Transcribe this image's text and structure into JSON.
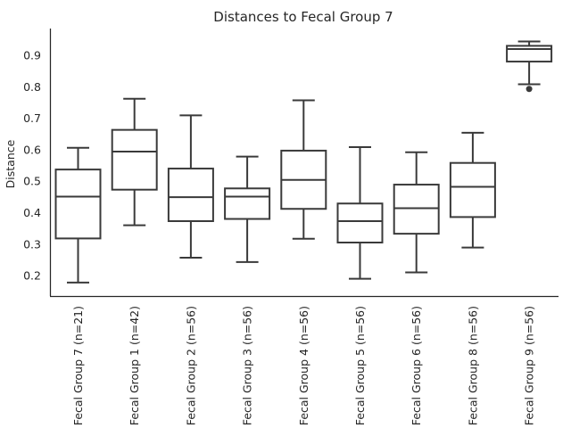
{
  "chart_data": {
    "type": "box",
    "title": "Distances to Fecal Group 7",
    "xlabel": "",
    "ylabel": "Distance",
    "ylim": [
      0.135,
      0.985
    ],
    "yticks": [
      0.2,
      0.3,
      0.4,
      0.5,
      0.6,
      0.7,
      0.8,
      0.9
    ],
    "ytick_labels": [
      "0.2",
      "0.3",
      "0.4",
      "0.5",
      "0.6",
      "0.7",
      "0.8",
      "0.9"
    ],
    "grid": false,
    "categories": [
      "Fecal Group 7 (n=21)",
      "Fecal Group 1 (n=42)",
      "Fecal Group 2 (n=56)",
      "Fecal Group 3 (n=56)",
      "Fecal Group 4 (n=56)",
      "Fecal Group 5 (n=56)",
      "Fecal Group 6 (n=56)",
      "Fecal Group 8 (n=56)",
      "Fecal Group 9 (n=56)"
    ],
    "boxes": [
      {
        "whislo": 0.178,
        "q1": 0.318,
        "med": 0.451,
        "q3": 0.537,
        "whishi": 0.606,
        "fliers": []
      },
      {
        "whislo": 0.36,
        "q1": 0.473,
        "med": 0.594,
        "q3": 0.663,
        "whishi": 0.762,
        "fliers": []
      },
      {
        "whislo": 0.257,
        "q1": 0.373,
        "med": 0.449,
        "q3": 0.54,
        "whishi": 0.709,
        "fliers": []
      },
      {
        "whislo": 0.243,
        "q1": 0.38,
        "med": 0.451,
        "q3": 0.477,
        "whishi": 0.578,
        "fliers": []
      },
      {
        "whislo": 0.317,
        "q1": 0.412,
        "med": 0.504,
        "q3": 0.597,
        "whishi": 0.757,
        "fliers": []
      },
      {
        "whislo": 0.19,
        "q1": 0.305,
        "med": 0.373,
        "q3": 0.429,
        "whishi": 0.608,
        "fliers": []
      },
      {
        "whislo": 0.21,
        "q1": 0.333,
        "med": 0.414,
        "q3": 0.489,
        "whishi": 0.592,
        "fliers": []
      },
      {
        "whislo": 0.289,
        "q1": 0.386,
        "med": 0.482,
        "q3": 0.558,
        "whishi": 0.654,
        "fliers": []
      },
      {
        "whislo": 0.808,
        "q1": 0.88,
        "med": 0.92,
        "q3": 0.93,
        "whishi": 0.944,
        "fliers": [
          0.793
        ]
      }
    ],
    "colors": {
      "box_edge": "#3a3a3a",
      "box_fill": "#ffffff",
      "axis": "#262626"
    }
  }
}
